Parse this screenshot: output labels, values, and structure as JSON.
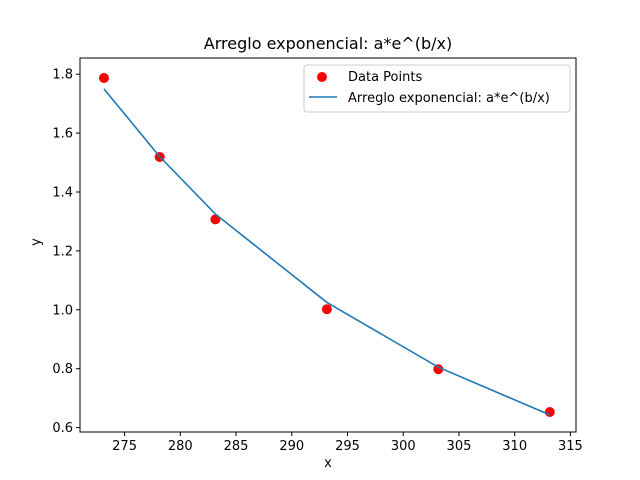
{
  "chart_data": {
    "type": "scatter",
    "title": "Arreglo exponencial: a*e^(b/x)",
    "xlabel": "x",
    "ylabel": "y",
    "xlim": [
      271.0,
      315.5
    ],
    "ylim": [
      0.585,
      1.855
    ],
    "xticks": [
      275,
      280,
      285,
      290,
      295,
      300,
      305,
      310,
      315
    ],
    "yticks": [
      0.6,
      0.8,
      1.0,
      1.2,
      1.4,
      1.6,
      1.8
    ],
    "xtick_labels": [
      "275",
      "280",
      "285",
      "290",
      "295",
      "300",
      "305",
      "310",
      "315"
    ],
    "ytick_labels": [
      "0.6",
      "0.8",
      "1.0",
      "1.2",
      "1.4",
      "1.6",
      "1.8"
    ],
    "grid": false,
    "legend_position": "top-right",
    "series": [
      {
        "name": "Data Points",
        "kind": "scatter",
        "color": "#ff0000",
        "x": [
          273.15,
          278.15,
          283.15,
          293.15,
          303.15,
          313.15
        ],
        "y": [
          1.787,
          1.519,
          1.307,
          1.002,
          0.798,
          0.653
        ]
      },
      {
        "name": "Arreglo exponencial: a*e^(b/x)",
        "kind": "line",
        "color": "#1f77b4",
        "x": [
          273.15,
          278.15,
          283.15,
          293.15,
          303.15,
          313.15
        ],
        "y": [
          1.75,
          1.52,
          1.325,
          1.025,
          0.805,
          0.643
        ]
      }
    ]
  }
}
